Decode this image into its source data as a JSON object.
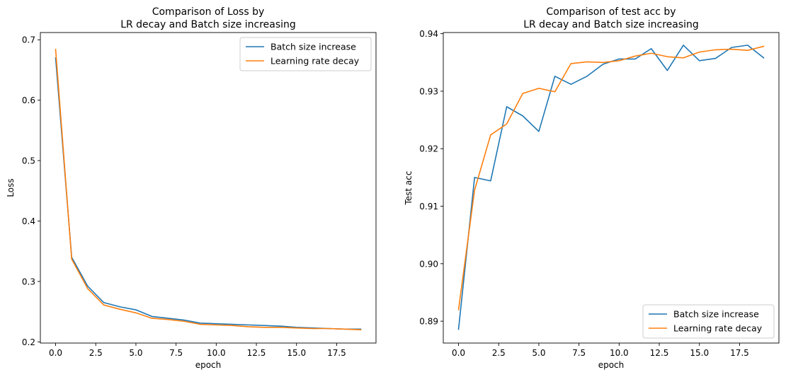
{
  "chart_data": [
    {
      "type": "line",
      "title_lines": [
        "Comparison of Loss by",
        "LR decay and Batch size increasing"
      ],
      "xlabel": "epoch",
      "ylabel": "Loss",
      "xlim": [
        -0.95,
        19.95
      ],
      "ylim": [
        0.198,
        0.712
      ],
      "xticks": [
        0,
        2.5,
        5,
        7.5,
        10,
        12.5,
        15,
        17.5
      ],
      "xtick_labels": [
        "0.0",
        "2.5",
        "5.0",
        "7.5",
        "10.0",
        "12.5",
        "15.0",
        "17.5"
      ],
      "yticks": [
        0.2,
        0.3,
        0.4,
        0.5,
        0.6,
        0.7
      ],
      "ytick_labels": [
        "0.2",
        "0.3",
        "0.4",
        "0.5",
        "0.6",
        "0.7"
      ],
      "legend_position": "top-right",
      "grid": false,
      "x": [
        0,
        1,
        2,
        3,
        4,
        5,
        6,
        7,
        8,
        9,
        10,
        11,
        12,
        13,
        14,
        15,
        16,
        17,
        18,
        19
      ],
      "series": [
        {
          "name": "Batch size increase",
          "color": "#1f77b4",
          "values": [
            0.67,
            0.34,
            0.292,
            0.265,
            0.258,
            0.253,
            0.242,
            0.239,
            0.236,
            0.231,
            0.23,
            0.229,
            0.228,
            0.227,
            0.226,
            0.224,
            0.223,
            0.222,
            0.221,
            0.221
          ]
        },
        {
          "name": "Learning rate decay",
          "color": "#ff7f0e",
          "values": [
            0.684,
            0.337,
            0.288,
            0.261,
            0.254,
            0.248,
            0.239,
            0.237,
            0.234,
            0.229,
            0.228,
            0.227,
            0.225,
            0.224,
            0.224,
            0.223,
            0.222,
            0.222,
            0.221,
            0.22
          ]
        }
      ]
    },
    {
      "type": "line",
      "title_lines": [
        "Comparison of test acc by",
        "LR decay and Batch size increasing"
      ],
      "xlabel": "epoch",
      "ylabel": "Test acc",
      "xlim": [
        -0.95,
        19.95
      ],
      "ylim": [
        0.8862,
        0.9402
      ],
      "xticks": [
        0,
        2.5,
        5,
        7.5,
        10,
        12.5,
        15,
        17.5
      ],
      "xtick_labels": [
        "0.0",
        "2.5",
        "5.0",
        "7.5",
        "10.0",
        "12.5",
        "15.0",
        "17.5"
      ],
      "yticks": [
        0.89,
        0.9,
        0.91,
        0.92,
        0.93,
        0.94
      ],
      "ytick_labels": [
        "0.89",
        "0.90",
        "0.91",
        "0.92",
        "0.93",
        "0.94"
      ],
      "legend_position": "bottom-right",
      "grid": false,
      "x": [
        0,
        1,
        2,
        3,
        4,
        5,
        6,
        7,
        8,
        9,
        10,
        11,
        12,
        13,
        14,
        15,
        16,
        17,
        18,
        19
      ],
      "series": [
        {
          "name": "Batch size increase",
          "color": "#1f77b4",
          "values": [
            0.8886,
            0.915,
            0.9144,
            0.9273,
            0.9257,
            0.923,
            0.9326,
            0.9312,
            0.9326,
            0.9347,
            0.9356,
            0.9356,
            0.9374,
            0.9336,
            0.938,
            0.9353,
            0.9357,
            0.9376,
            0.938,
            0.9358
          ]
        },
        {
          "name": "Learning rate decay",
          "color": "#ff7f0e",
          "values": [
            0.892,
            0.9128,
            0.9224,
            0.9243,
            0.9296,
            0.9305,
            0.9299,
            0.9348,
            0.9351,
            0.935,
            0.9353,
            0.9361,
            0.9366,
            0.936,
            0.9358,
            0.9368,
            0.9372,
            0.9373,
            0.9371,
            0.9378
          ]
        }
      ]
    }
  ]
}
